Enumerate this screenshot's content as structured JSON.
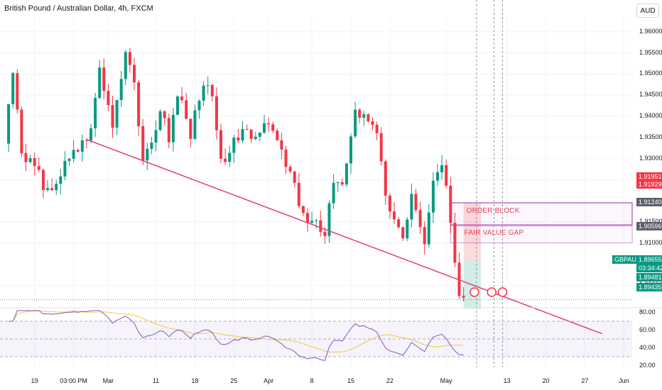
{
  "header": {
    "title": "British Pound / Australian Dollar, 4h, FXCM",
    "currency_button": "AUD"
  },
  "chart_data": {
    "type": "candlestick",
    "symbol_label": "GBPAUD",
    "ylim": [
      1.895,
      1.9635
    ],
    "yticks": [
      {
        "v": 1.96,
        "label": "1.96000"
      },
      {
        "v": 1.955,
        "label": "1.95500"
      },
      {
        "v": 1.95,
        "label": "1.95000"
      },
      {
        "v": 1.945,
        "label": "1.94500"
      },
      {
        "v": 1.94,
        "label": "1.94000"
      },
      {
        "v": 1.935,
        "label": "1.93500"
      },
      {
        "v": 1.93,
        "label": "1.93000"
      },
      {
        "v": 1.925,
        "label": "1.92500"
      },
      {
        "v": 1.915,
        "label": "1.91500"
      },
      {
        "v": 1.91,
        "label": "1.91000"
      },
      {
        "v": 1.9,
        "label": "1.90000"
      }
    ],
    "xticks": [
      {
        "label": "19",
        "bar": 7
      },
      {
        "label": "03:00 PM",
        "bar": 16
      },
      {
        "label": "Mar",
        "bar": 24
      },
      {
        "label": "11",
        "bar": 35
      },
      {
        "label": "18",
        "bar": 44
      },
      {
        "label": "25",
        "bar": 53
      },
      {
        "label": "Apr",
        "bar": 61
      },
      {
        "label": "8",
        "bar": 71
      },
      {
        "label": "15",
        "bar": 80
      },
      {
        "label": "22",
        "bar": 89
      },
      {
        "label": "May",
        "bar": 102
      },
      {
        "label": "13",
        "bar": 116
      },
      {
        "label": "20",
        "bar": 125
      },
      {
        "label": "27",
        "bar": 134
      },
      {
        "label": "Jun",
        "bar": 143
      }
    ],
    "anchors": [
      [
        0,
        1.933
      ],
      [
        2,
        1.951
      ],
      [
        4,
        1.931
      ],
      [
        7,
        1.928
      ],
      [
        10,
        1.922
      ],
      [
        14,
        1.928
      ],
      [
        17,
        1.933
      ],
      [
        20,
        1.936
      ],
      [
        22,
        1.952
      ],
      [
        25,
        1.937
      ],
      [
        28,
        1.9555
      ],
      [
        30,
        1.947
      ],
      [
        32,
        1.928
      ],
      [
        34,
        1.934
      ],
      [
        36,
        1.942
      ],
      [
        38,
        1.935
      ],
      [
        40,
        1.946
      ],
      [
        43,
        1.936
      ],
      [
        46,
        1.949
      ],
      [
        48,
        1.944
      ],
      [
        50,
        1.929
      ],
      [
        52,
        1.932
      ],
      [
        55,
        1.936
      ],
      [
        58,
        1.934
      ],
      [
        60,
        1.9395
      ],
      [
        63,
        1.933
      ],
      [
        66,
        1.928
      ],
      [
        68,
        1.918
      ],
      [
        71,
        1.915
      ],
      [
        74,
        1.913
      ],
      [
        76,
        1.924
      ],
      [
        78,
        1.923
      ],
      [
        81,
        1.941
      ],
      [
        84,
        1.938
      ],
      [
        86,
        1.936
      ],
      [
        88,
        1.922
      ],
      [
        90,
        1.915
      ],
      [
        92,
        1.912
      ],
      [
        94,
        1.921
      ],
      [
        96,
        1.913
      ],
      [
        97,
        1.911
      ],
      [
        99,
        1.924
      ],
      [
        101,
        1.929
      ],
      [
        103,
        1.916
      ],
      [
        104,
        1.906
      ],
      [
        105,
        1.896
      ],
      [
        106,
        1.897
      ]
    ],
    "trendline": {
      "from": {
        "bar": 19,
        "price": 1.9345
      },
      "to": {
        "bar": 138,
        "price": 1.8885
      }
    },
    "order_block": {
      "label": "ORDER BLOCK",
      "top": 1.91951,
      "bottom": 1.91429
    },
    "fair_value_gap": {
      "label": "FAIR VALUE GAP",
      "top": 1.91404,
      "bottom": 1.91003
    },
    "price_labels": [
      {
        "v": 1.91951,
        "label": "1.91951",
        "color": "#f23645"
      },
      {
        "v": 1.91929,
        "label": "1.91929",
        "color": "#f23645"
      },
      {
        "v": 1.9124,
        "label": "1.91240",
        "color": "#5d606b"
      },
      {
        "v": 1.90596,
        "label": "1.90596",
        "color": "#5d606b"
      },
      {
        "v": 1.89655,
        "label": "GBPAUD",
        "color": "#089981"
      },
      {
        "v": 1.89655,
        "label": "1.89655",
        "color": "#089981"
      },
      {
        "v": 1.89481,
        "label": "1.89481",
        "color": "#089981"
      },
      {
        "v": 1.89435,
        "label": "1.89435",
        "color": "#089981"
      }
    ],
    "countdown": "03:34:42",
    "rsi": {
      "yticks": [
        {
          "v": 80,
          "label": "80.00"
        },
        {
          "v": 60,
          "label": "60.00"
        },
        {
          "v": 40,
          "label": "40.00"
        },
        {
          "v": 20,
          "label": "20.00"
        }
      ],
      "upper": 70,
      "lower": 30,
      "line_color": "#7e57c2",
      "ma_color": "#f2c744"
    },
    "colors": {
      "up": "#089981",
      "down": "#f23645",
      "trend": "#e0407a",
      "zone_line": "#9c27b0",
      "grid": "#f0f3fa"
    }
  }
}
